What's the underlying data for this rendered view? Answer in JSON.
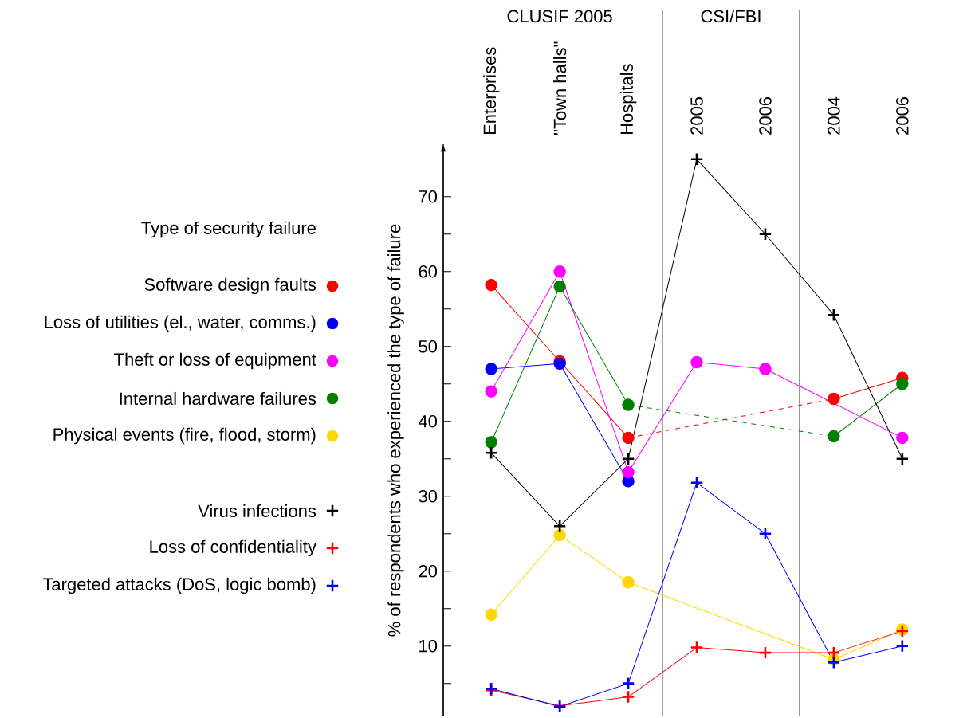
{
  "chart_data": {
    "type": "line",
    "ylabel": "% of respondents who experienced the type of failure",
    "legend_title": "Type of security failure",
    "legend": "left",
    "categories": [
      "Enterprises",
      "\"Town halls\"",
      "Hospitals",
      "2005",
      "2006",
      "2004",
      "2006"
    ],
    "annotations": [
      "CLUSIF 2005",
      "CSI/FBI"
    ],
    "ylim": [
      0.6,
      77
    ],
    "yticks": [
      {
        "value": 5,
        "label": null
      },
      10,
      {
        "value": 15,
        "label": null
      },
      20,
      {
        "value": 25,
        "label": null
      },
      30,
      {
        "value": 35,
        "label": null
      },
      40,
      {
        "value": 45,
        "label": null
      },
      50,
      {
        "value": 55,
        "label": null
      },
      60,
      {
        "value": 65,
        "label": null
      },
      70
    ],
    "grid": false,
    "series": [
      {
        "color": "#ff0000",
        "line_style": "dashed",
        "values": [
          null,
          null,
          37.8,
          null,
          null,
          43,
          null
        ]
      },
      {
        "color": "#008000",
        "line_style": "dashed",
        "values": [
          null,
          null,
          42.2,
          null,
          null,
          38,
          null
        ]
      },
      {
        "color": "#ff0000",
        "marker": "circle",
        "line_style": "solid",
        "values": [
          null,
          null,
          null,
          null,
          null,
          43,
          45.8
        ]
      },
      {
        "color": "#008000",
        "marker": "circle",
        "line_style": "solid",
        "values": [
          null,
          null,
          null,
          null,
          null,
          38,
          45
        ]
      },
      {
        "name": "Software design faults",
        "color": "#ff0000",
        "marker": "circle",
        "line_style": "solid",
        "values": [
          58.2,
          48,
          37.8,
          null,
          null,
          null,
          null
        ]
      },
      {
        "name": "Loss of utilities (el., water, comms.)",
        "color": "#0000ff",
        "marker": "circle",
        "line_style": "solid",
        "values": [
          47,
          47.7,
          32,
          null,
          null,
          null,
          null
        ]
      },
      {
        "name": "Theft or loss of equipment",
        "color": "#ff00ff",
        "marker": "circle",
        "line_style": "solid",
        "values": [
          44,
          60,
          33.2,
          47.9,
          47,
          null,
          37.8
        ]
      },
      {
        "name": "Internal hardware failures",
        "color": "#008000",
        "marker": "circle",
        "line_style": "solid",
        "values": [
          37.2,
          58,
          42.2,
          null,
          null,
          null,
          null
        ]
      },
      {
        "name": "Physical events (fire, flood, storm)",
        "color": "#ffd700",
        "marker": "circle",
        "line_style": "solid",
        "values": [
          14.2,
          24.8,
          18.5,
          null,
          null,
          8.2,
          12.2
        ]
      },
      {
        "name": "Virus infections",
        "color": "#000000",
        "marker": "cross",
        "line_style": "solid",
        "values": [
          35.8,
          26,
          35,
          75,
          65,
          54.2,
          35
        ]
      },
      {
        "name": "Loss of confidentiality",
        "color": "#ff0000",
        "marker": "cross",
        "line_style": "solid",
        "values": [
          4.1,
          2,
          3.2,
          9.8,
          9.1,
          9.1,
          12
        ]
      },
      {
        "name": "Targeted attacks (DoS, logic bomb)",
        "color": "#0000ff",
        "marker": "cross",
        "line_style": "solid",
        "values": [
          4.3,
          1.9,
          5,
          31.8,
          25,
          7.8,
          10
        ]
      }
    ]
  }
}
